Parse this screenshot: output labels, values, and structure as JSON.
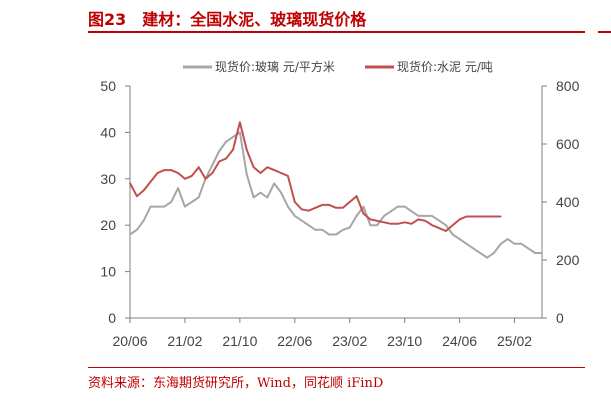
{
  "header": {
    "figure_label": "图23",
    "title_text": "建材：全国水泥、玻璃现货价格"
  },
  "footer": {
    "source": "资料来源：东海期货研究所，Wind，同花顺 iFinD"
  },
  "colors": {
    "accent": "#c00000",
    "glass_series": "#a6a6a6",
    "cement_series": "#c0504d",
    "axis": "#7f7f7f"
  },
  "chart_data": {
    "type": "line",
    "title": "",
    "legend_position": "top-center",
    "grid": false,
    "x_tick_labels": [
      "20/06",
      "21/02",
      "21/10",
      "22/06",
      "23/02",
      "23/10",
      "24/06",
      "25/02"
    ],
    "x_tick_dates": [
      "2020-06",
      "2021-02",
      "2021-10",
      "2022-06",
      "2023-02",
      "2023-10",
      "2024-06",
      "2025-02"
    ],
    "xlim": [
      "2020-06",
      "2025-06"
    ],
    "y_left": {
      "label": "",
      "ylim": [
        0,
        50
      ],
      "ticks": [
        0,
        10,
        20,
        30,
        40,
        50
      ]
    },
    "y_right": {
      "label": "",
      "ylim": [
        0,
        800
      ],
      "ticks": [
        0,
        200,
        400,
        600,
        800
      ]
    },
    "series": [
      {
        "name": "现货价:玻璃 元/平方米",
        "axis": "left",
        "x": [
          "2020-06",
          "2020-07",
          "2020-08",
          "2020-09",
          "2020-10",
          "2020-11",
          "2020-12",
          "2021-01",
          "2021-02",
          "2021-03",
          "2021-04",
          "2021-05",
          "2021-06",
          "2021-07",
          "2021-08",
          "2021-09",
          "2021-10",
          "2021-11",
          "2021-12",
          "2022-01",
          "2022-02",
          "2022-03",
          "2022-04",
          "2022-05",
          "2022-06",
          "2022-07",
          "2022-08",
          "2022-09",
          "2022-10",
          "2022-11",
          "2022-12",
          "2023-01",
          "2023-02",
          "2023-03",
          "2023-04",
          "2023-05",
          "2023-06",
          "2023-07",
          "2023-08",
          "2023-09",
          "2023-10",
          "2023-11",
          "2023-12",
          "2024-01",
          "2024-02",
          "2024-03",
          "2024-04",
          "2024-05",
          "2024-06",
          "2024-07",
          "2024-08",
          "2024-09",
          "2024-10",
          "2024-11",
          "2024-12",
          "2025-01",
          "2025-02",
          "2025-03",
          "2025-04",
          "2025-05",
          "2025-06"
        ],
        "values": [
          18,
          19,
          21,
          24,
          24,
          24,
          25,
          28,
          24,
          25,
          26,
          30,
          33,
          36,
          38,
          39,
          40,
          31,
          26,
          27,
          26,
          29,
          27,
          24,
          22,
          21,
          20,
          19,
          19,
          18,
          18,
          19,
          19.5,
          22,
          24,
          20,
          20,
          22,
          23,
          24,
          24,
          23,
          22,
          22,
          22,
          21,
          20,
          18,
          17,
          16,
          15,
          14,
          13,
          14,
          16,
          17,
          16,
          16,
          15,
          14,
          14
        ]
      },
      {
        "name": "现货价:水泥 元/吨",
        "axis": "right",
        "x": [
          "2020-06",
          "2020-07",
          "2020-08",
          "2020-09",
          "2020-10",
          "2020-11",
          "2020-12",
          "2021-01",
          "2021-02",
          "2021-03",
          "2021-04",
          "2021-05",
          "2021-06",
          "2021-07",
          "2021-08",
          "2021-09",
          "2021-10",
          "2021-11",
          "2021-12",
          "2022-01",
          "2022-02",
          "2022-03",
          "2022-04",
          "2022-05",
          "2022-06",
          "2022-07",
          "2022-08",
          "2022-09",
          "2022-10",
          "2022-11",
          "2022-12",
          "2023-01",
          "2023-02",
          "2023-03",
          "2023-04",
          "2023-05",
          "2023-06",
          "2023-07",
          "2023-08",
          "2023-09",
          "2023-10",
          "2023-11",
          "2023-12",
          "2024-01",
          "2024-02",
          "2024-03",
          "2024-04",
          "2024-05",
          "2024-06",
          "2024-07",
          "2024-08",
          "2024-09",
          "2024-10",
          "2024-11",
          "2024-12"
        ],
        "values": [
          465,
          420,
          440,
          470,
          500,
          510,
          510,
          500,
          480,
          490,
          520,
          480,
          500,
          540,
          550,
          580,
          675,
          580,
          520,
          500,
          520,
          510,
          500,
          490,
          400,
          375,
          370,
          380,
          390,
          390,
          380,
          380,
          400,
          420,
          360,
          340,
          335,
          330,
          325,
          325,
          330,
          325,
          340,
          335,
          320,
          310,
          300,
          320,
          340,
          350,
          350,
          350,
          350,
          350,
          350
        ]
      }
    ]
  }
}
